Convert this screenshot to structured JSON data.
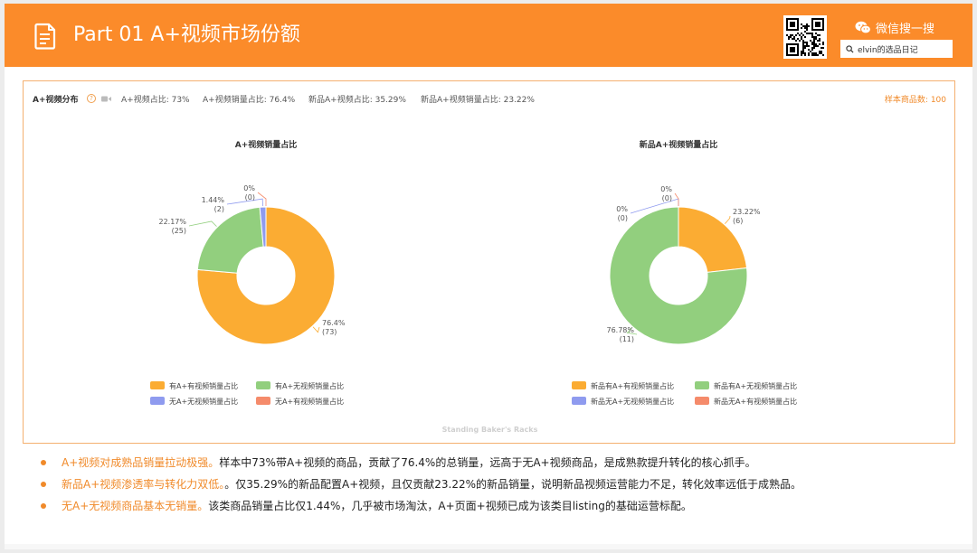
{
  "header": {
    "title": "Part 01  A+视频市场份额",
    "wechat_label": "微信搜一搜",
    "search_value": "elvin的选品日记",
    "icons": {
      "doc": "document-icon",
      "qr": "qr-code-icon",
      "wechat": "wechat-icon",
      "search": "search-icon"
    }
  },
  "panel": {
    "title": "A+视频分布",
    "stats": [
      "A+视频占比: 73%",
      "A+视频销量占比: 76.4%",
      "新品A+视频占比: 35.29%",
      "新品A+视频销量占比: 23.22%"
    ],
    "sample": "样本商品数: 100",
    "watermark": "Standing Baker's Racks"
  },
  "chart_data": [
    {
      "type": "pie",
      "title": "A+视频销量占比",
      "slices": [
        {
          "name": "有A+有视频销量占比",
          "value": 76.4,
          "label": "76.4%",
          "count": "(73)",
          "color": "#fbac33"
        },
        {
          "name": "有A+无视频销量占比",
          "value": 22.17,
          "label": "22.17%",
          "count": "(25)",
          "color": "#92cf7e"
        },
        {
          "name": "无A+无视频销量占比",
          "value": 1.44,
          "label": "1.44%",
          "count": "(2)",
          "color": "#8f9bef"
        },
        {
          "name": "无A+有视频销量占比",
          "value": 0,
          "label": "0%",
          "count": "(0)",
          "color": "#f58b6b"
        }
      ]
    },
    {
      "type": "pie",
      "title": "新品A+视频销量占比",
      "slices": [
        {
          "name": "新品有A+有视频销量占比",
          "value": 23.22,
          "label": "23.22%",
          "count": "(6)",
          "color": "#fbac33"
        },
        {
          "name": "新品有A+无视频销量占比",
          "value": 76.78,
          "label": "76.78%",
          "count": "(11)",
          "color": "#92cf7e"
        },
        {
          "name": "新品无A+无视频销量占比",
          "value": 0,
          "label": "0%",
          "count": "(0)",
          "color": "#8f9bef"
        },
        {
          "name": "新品无A+有视频销量占比",
          "value": 0,
          "label": "0%",
          "count": "(0)",
          "color": "#f58b6b"
        }
      ]
    }
  ],
  "bullets": [
    {
      "highlight": "A+视频对成熟品销量拉动极强。",
      "text": "样本中73%带A+视频的商品，贡献了76.4%的总销量，远高于无A+视频商品，是成熟款提升转化的核心抓手。"
    },
    {
      "highlight": "新品A+视频渗透率与转化力双低。",
      "text": "。仅35.29%的新品配置A+视频，且仅贡献23.22%的新品销量，说明新品视频运营能力不足，转化效率远低于成熟品。"
    },
    {
      "highlight": "无A+无视频商品基本无销量。",
      "text": "该类商品销量占比仅1.44%，几乎被市场淘汰，A+页面+视频已成为该类目listing的基础运营标配。"
    }
  ]
}
